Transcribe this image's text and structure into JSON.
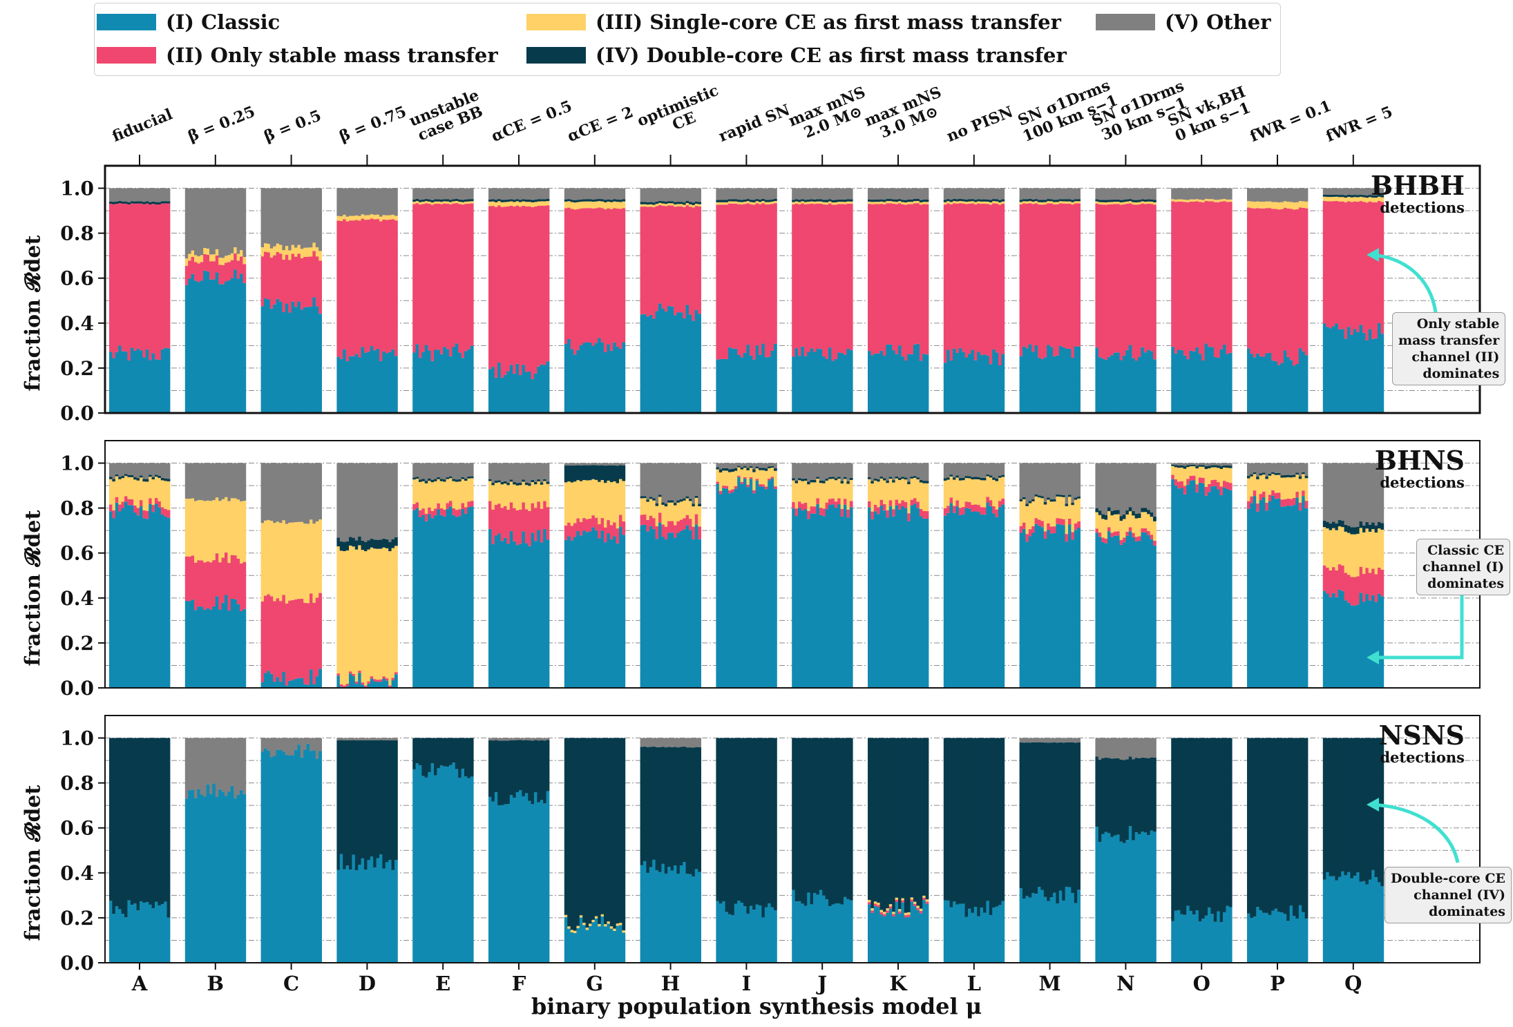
{
  "legend": {
    "items": [
      {
        "label": "(I) Classic",
        "color": "#118ab2"
      },
      {
        "label": "(II) Only stable mass transfer",
        "color": "#ef476f"
      },
      {
        "label": "(III) Single-core CE as first mass transfer",
        "color": "#ffd166"
      },
      {
        "label": "(IV) Double-core CE as first mass transfer",
        "color": "#073b4c"
      },
      {
        "label": "(V) Other",
        "color": "#808080"
      }
    ]
  },
  "top_labels": [
    {
      "lines": [
        "fiducial"
      ]
    },
    {
      "lines": [
        "β = 0.25"
      ]
    },
    {
      "lines": [
        "β = 0.5"
      ]
    },
    {
      "lines": [
        "β = 0.75"
      ]
    },
    {
      "lines": [
        "unstable",
        "case BB"
      ]
    },
    {
      "lines": [
        "αCE = 0.5"
      ]
    },
    {
      "lines": [
        "αCE = 2"
      ]
    },
    {
      "lines": [
        "optimistic",
        "CE"
      ]
    },
    {
      "lines": [
        "rapid SN"
      ]
    },
    {
      "lines": [
        "max mNS",
        "2.0 M⊙"
      ]
    },
    {
      "lines": [
        "max mNS",
        "3.0 M⊙"
      ]
    },
    {
      "lines": [
        "no PISN"
      ]
    },
    {
      "lines": [
        "SN σ1Drms",
        "100 km s−1"
      ]
    },
    {
      "lines": [
        "SN σ1Drms",
        "30 km s−1"
      ]
    },
    {
      "lines": [
        "SN vk,BH",
        "0 km s−1"
      ]
    },
    {
      "lines": [
        "fWR = 0.1"
      ]
    },
    {
      "lines": [
        "fWR = 5"
      ]
    }
  ],
  "xlabel": "binary population synthesis model μ",
  "ylabel": "fraction 𝓡det",
  "chart_data": {
    "type": "bar",
    "stacked": true,
    "categories": [
      "A",
      "B",
      "C",
      "D",
      "E",
      "F",
      "G",
      "H",
      "I",
      "J",
      "K",
      "L",
      "M",
      "N",
      "O",
      "P",
      "Q"
    ],
    "series_names": [
      "(I) Classic",
      "(II) Only stable mass transfer",
      "(III) Single-core CE as first mass transfer",
      "(IV) Double-core CE as first mass transfer",
      "(V) Other"
    ],
    "ylim": [
      0,
      1.1
    ],
    "yticks": [
      "0.0",
      "0.2",
      "0.4",
      "0.6",
      "0.8",
      "1.0"
    ],
    "panels": [
      {
        "title": "BHBH",
        "subtitle": "detections",
        "annotation": [
          "Only stable",
          "mass transfer",
          "channel (II)",
          "dominates"
        ],
        "fractions": [
          [
            0.26,
            0.67,
            0.0,
            0.01,
            0.06
          ],
          [
            0.6,
            0.08,
            0.03,
            0.0,
            0.29
          ],
          [
            0.48,
            0.22,
            0.04,
            0.0,
            0.26
          ],
          [
            0.27,
            0.59,
            0.02,
            0.0,
            0.12
          ],
          [
            0.27,
            0.66,
            0.01,
            0.01,
            0.05
          ],
          [
            0.19,
            0.73,
            0.02,
            0.01,
            0.05
          ],
          [
            0.3,
            0.61,
            0.03,
            0.01,
            0.05
          ],
          [
            0.45,
            0.47,
            0.01,
            0.01,
            0.06
          ],
          [
            0.27,
            0.66,
            0.01,
            0.01,
            0.05
          ],
          [
            0.27,
            0.66,
            0.01,
            0.01,
            0.05
          ],
          [
            0.27,
            0.66,
            0.01,
            0.01,
            0.05
          ],
          [
            0.25,
            0.68,
            0.01,
            0.01,
            0.05
          ],
          [
            0.27,
            0.66,
            0.01,
            0.01,
            0.05
          ],
          [
            0.27,
            0.66,
            0.01,
            0.01,
            0.05
          ],
          [
            0.27,
            0.67,
            0.01,
            0.0,
            0.05
          ],
          [
            0.25,
            0.66,
            0.03,
            0.0,
            0.06
          ],
          [
            0.36,
            0.58,
            0.02,
            0.01,
            0.03
          ]
        ]
      },
      {
        "title": "BHNS",
        "subtitle": "detections",
        "annotation": [
          "Classic CE",
          "channel (I)",
          "dominates"
        ],
        "fractions": [
          [
            0.79,
            0.03,
            0.11,
            0.01,
            0.06
          ],
          [
            0.38,
            0.2,
            0.26,
            0.0,
            0.16
          ],
          [
            0.05,
            0.35,
            0.34,
            0.0,
            0.26
          ],
          [
            0.03,
            0.01,
            0.58,
            0.04,
            0.34
          ],
          [
            0.77,
            0.03,
            0.12,
            0.01,
            0.07
          ],
          [
            0.67,
            0.14,
            0.1,
            0.01,
            0.08
          ],
          [
            0.68,
            0.06,
            0.18,
            0.07,
            0.01
          ],
          [
            0.7,
            0.05,
            0.08,
            0.01,
            0.16
          ],
          [
            0.9,
            0.01,
            0.06,
            0.01,
            0.02
          ],
          [
            0.79,
            0.03,
            0.1,
            0.01,
            0.07
          ],
          [
            0.78,
            0.03,
            0.11,
            0.01,
            0.07
          ],
          [
            0.79,
            0.03,
            0.11,
            0.01,
            0.06
          ],
          [
            0.69,
            0.03,
            0.11,
            0.01,
            0.16
          ],
          [
            0.66,
            0.02,
            0.08,
            0.02,
            0.22
          ],
          [
            0.89,
            0.03,
            0.06,
            0.01,
            0.01
          ],
          [
            0.82,
            0.03,
            0.09,
            0.01,
            0.05
          ],
          [
            0.4,
            0.12,
            0.18,
            0.03,
            0.27
          ]
        ]
      },
      {
        "title": "NSNS",
        "subtitle": "detections",
        "annotation": [
          "Double-core CE",
          "channel (IV)",
          "dominates"
        ],
        "fractions": [
          [
            0.24,
            0.0,
            0.0,
            0.76,
            0.0
          ],
          [
            0.77,
            0.0,
            0.0,
            0.0,
            0.23
          ],
          [
            0.94,
            0.0,
            0.0,
            0.0,
            0.06
          ],
          [
            0.45,
            0.0,
            0.0,
            0.54,
            0.01
          ],
          [
            0.86,
            0.0,
            0.0,
            0.14,
            0.0
          ],
          [
            0.74,
            0.0,
            0.0,
            0.25,
            0.01
          ],
          [
            0.17,
            0.0,
            0.01,
            0.82,
            0.0
          ],
          [
            0.42,
            0.0,
            0.0,
            0.54,
            0.04
          ],
          [
            0.24,
            0.0,
            0.0,
            0.76,
            0.0
          ],
          [
            0.29,
            0.0,
            0.0,
            0.71,
            0.0
          ],
          [
            0.24,
            0.01,
            0.01,
            0.74,
            0.0
          ],
          [
            0.24,
            0.0,
            0.0,
            0.76,
            0.0
          ],
          [
            0.3,
            0.0,
            0.0,
            0.68,
            0.02
          ],
          [
            0.57,
            0.0,
            0.0,
            0.34,
            0.09
          ],
          [
            0.22,
            0.0,
            0.0,
            0.78,
            0.0
          ],
          [
            0.22,
            0.0,
            0.0,
            0.78,
            0.0
          ],
          [
            0.38,
            0.0,
            0.0,
            0.62,
            0.0
          ]
        ]
      }
    ]
  }
}
